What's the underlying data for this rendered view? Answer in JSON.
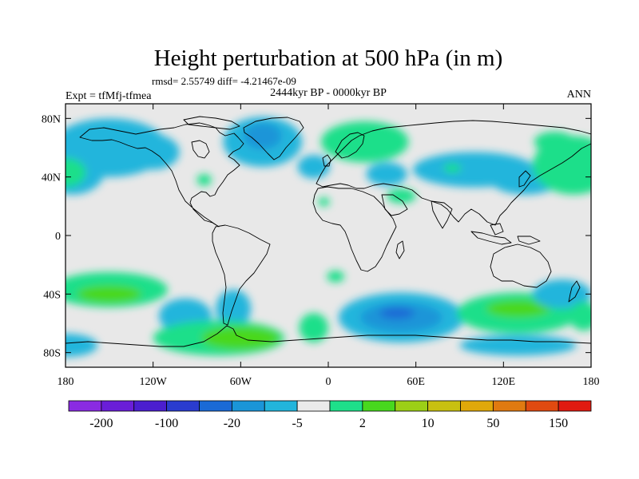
{
  "header": {
    "title": "Height perturbation at 500 hPa (in m)",
    "stats": "rmsd= 2.55749 diff= -4.21467e-09",
    "period": "2444kyr BP - 0000kyr BP",
    "experiment": "Expt = tfMfj-tfmea",
    "season": "ANN"
  },
  "axes": {
    "lat_ticks": [
      {
        "label": "80N",
        "lat": 80
      },
      {
        "label": "40N",
        "lat": 40
      },
      {
        "label": "0",
        "lat": 0
      },
      {
        "label": "40S",
        "lat": -40
      },
      {
        "label": "80S",
        "lat": -80
      }
    ],
    "lon_ticks": [
      {
        "label": "180",
        "lon": -180
      },
      {
        "label": "120W",
        "lon": -120
      },
      {
        "label": "60W",
        "lon": -60
      },
      {
        "label": "0",
        "lon": 0
      },
      {
        "label": "60E",
        "lon": 60
      },
      {
        "label": "120E",
        "lon": 120
      },
      {
        "label": "180",
        "lon": 180
      }
    ],
    "lon_range": [
      -180,
      180
    ],
    "lat_range": [
      -90,
      90
    ]
  },
  "colorbar": {
    "colors": [
      "#8a2be2",
      "#6a1ed8",
      "#4b1ecf",
      "#2a3ccf",
      "#1a6ad6",
      "#1a95d8",
      "#22b5dc",
      "#eaeaea",
      "#1edf8a",
      "#48d81e",
      "#9ccf16",
      "#c8c010",
      "#e0a80a",
      "#e07a10",
      "#e04a10",
      "#e01a10"
    ],
    "labels": [
      {
        "text": "-200",
        "index": 1
      },
      {
        "text": "-100",
        "index": 3
      },
      {
        "text": "-20",
        "index": 5
      },
      {
        "text": "-5",
        "index": 7
      },
      {
        "text": "2",
        "index": 9
      },
      {
        "text": "10",
        "index": 11
      },
      {
        "text": "50",
        "index": 13
      },
      {
        "text": "150",
        "index": 15
      }
    ]
  },
  "field": {
    "background": "#e8e8e8",
    "blobs": [
      {
        "lon": -150,
        "lat": 60,
        "rx": 40,
        "ry": 20,
        "color": "#22b5dc"
      },
      {
        "lon": -175,
        "lat": 45,
        "rx": 22,
        "ry": 17,
        "color": "#22b5dc"
      },
      {
        "lon": -180,
        "lat": 43,
        "rx": 14,
        "ry": 10,
        "color": "#1edf8a"
      },
      {
        "lon": -120,
        "lat": 57,
        "rx": 18,
        "ry": 12,
        "color": "#22b5dc"
      },
      {
        "lon": -45,
        "lat": 64,
        "rx": 27,
        "ry": 17,
        "color": "#22b5dc"
      },
      {
        "lon": -45,
        "lat": 68,
        "rx": 13,
        "ry": 9,
        "color": "#1a95d8"
      },
      {
        "lon": -10,
        "lat": 47,
        "rx": 11,
        "ry": 8,
        "color": "#22b5dc"
      },
      {
        "lon": -85,
        "lat": 38,
        "rx": 5,
        "ry": 4,
        "color": "#1edf8a"
      },
      {
        "lon": 25,
        "lat": 64,
        "rx": 30,
        "ry": 14,
        "color": "#1edf8a"
      },
      {
        "lon": 40,
        "lat": 42,
        "rx": 14,
        "ry": 8,
        "color": "#22b5dc"
      },
      {
        "lon": 50,
        "lat": 27,
        "rx": 10,
        "ry": 5,
        "color": "#1edf8a"
      },
      {
        "lon": -3,
        "lat": 23,
        "rx": 4,
        "ry": 3,
        "color": "#1edf8a"
      },
      {
        "lon": 100,
        "lat": 45,
        "rx": 42,
        "ry": 12,
        "color": "#22b5dc"
      },
      {
        "lon": 135,
        "lat": 38,
        "rx": 24,
        "ry": 10,
        "color": "#22b5dc"
      },
      {
        "lon": 85,
        "lat": 46,
        "rx": 6,
        "ry": 3,
        "color": "#1edf8a"
      },
      {
        "lon": 168,
        "lat": 48,
        "rx": 28,
        "ry": 20,
        "color": "#1edf8a"
      },
      {
        "lon": 155,
        "lat": 64,
        "rx": 14,
        "ry": 7,
        "color": "#1edf8a"
      },
      {
        "lon": -150,
        "lat": -37,
        "rx": 40,
        "ry": 12,
        "color": "#1edf8a"
      },
      {
        "lon": -150,
        "lat": -40,
        "rx": 22,
        "ry": 6,
        "color": "#48d81e"
      },
      {
        "lon": -98,
        "lat": -55,
        "rx": 18,
        "ry": 12,
        "color": "#22b5dc"
      },
      {
        "lon": -65,
        "lat": -50,
        "rx": 12,
        "ry": 13,
        "color": "#22b5dc"
      },
      {
        "lon": -75,
        "lat": -70,
        "rx": 45,
        "ry": 12,
        "color": "#1edf8a"
      },
      {
        "lon": -60,
        "lat": -70,
        "rx": 27,
        "ry": 8,
        "color": "#48d81e"
      },
      {
        "lon": -10,
        "lat": -63,
        "rx": 10,
        "ry": 10,
        "color": "#1edf8a"
      },
      {
        "lon": 5,
        "lat": -28,
        "rx": 6,
        "ry": 4,
        "color": "#1edf8a"
      },
      {
        "lon": 50,
        "lat": -56,
        "rx": 43,
        "ry": 17,
        "color": "#22b5dc"
      },
      {
        "lon": 50,
        "lat": -56,
        "rx": 28,
        "ry": 10,
        "color": "#1a95d8"
      },
      {
        "lon": 47,
        "lat": -53,
        "rx": 12,
        "ry": 4,
        "color": "#1a6ad6"
      },
      {
        "lon": 130,
        "lat": -53,
        "rx": 42,
        "ry": 14,
        "color": "#1edf8a"
      },
      {
        "lon": 130,
        "lat": -50,
        "rx": 22,
        "ry": 6,
        "color": "#48d81e"
      },
      {
        "lon": 160,
        "lat": -40,
        "rx": 20,
        "ry": 10,
        "color": "#22b5dc"
      },
      {
        "lon": 130,
        "lat": -75,
        "rx": 40,
        "ry": 7,
        "color": "#22b5dc"
      },
      {
        "lon": -180,
        "lat": -75,
        "rx": 22,
        "ry": 8,
        "color": "#22b5dc"
      },
      {
        "lon": 175,
        "lat": -55,
        "rx": 10,
        "ry": 10,
        "color": "#1edf8a"
      }
    ]
  }
}
